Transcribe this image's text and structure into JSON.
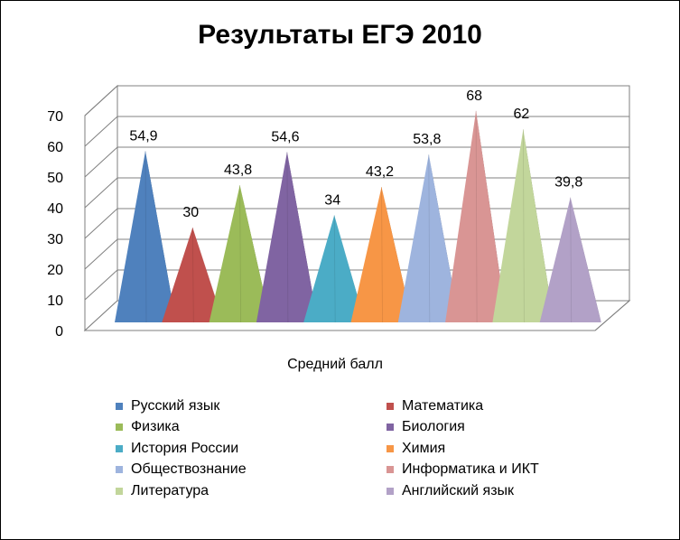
{
  "chart_data": {
    "type": "bar",
    "style": "3d-pyramid",
    "title": "Результаты ЕГЭ 2010",
    "xlabel": "Средний балл",
    "ylabel": "",
    "ylim": [
      0,
      70
    ],
    "yticks": [
      "0",
      "10",
      "20",
      "30",
      "40",
      "50",
      "60",
      "70"
    ],
    "grid": true,
    "legend_position": "bottom",
    "series": [
      {
        "name": "Русский язык",
        "value": 54.9,
        "label": "54,9",
        "color": "#4F81BD"
      },
      {
        "name": "Математика",
        "value": 30,
        "label": "30",
        "color": "#C0504D"
      },
      {
        "name": "Физика",
        "value": 43.8,
        "label": "43,8",
        "color": "#9BBB59"
      },
      {
        "name": "Биология",
        "value": 54.6,
        "label": "54,6",
        "color": "#8064A2"
      },
      {
        "name": "История России",
        "value": 34,
        "label": "34",
        "color": "#4BACC6"
      },
      {
        "name": "Химия",
        "value": 43.2,
        "label": "43,2",
        "color": "#F79646"
      },
      {
        "name": "Обществознание",
        "value": 53.8,
        "label": "53,8",
        "color": "#9EB4DE"
      },
      {
        "name": "Информатика и ИКТ",
        "value": 68,
        "label": "68",
        "color": "#D99594"
      },
      {
        "name": "Литература",
        "value": 62,
        "label": "62",
        "color": "#C2D69B"
      },
      {
        "name": "Английский язык",
        "value": 39.8,
        "label": "39,8",
        "color": "#B2A1C7"
      }
    ]
  }
}
